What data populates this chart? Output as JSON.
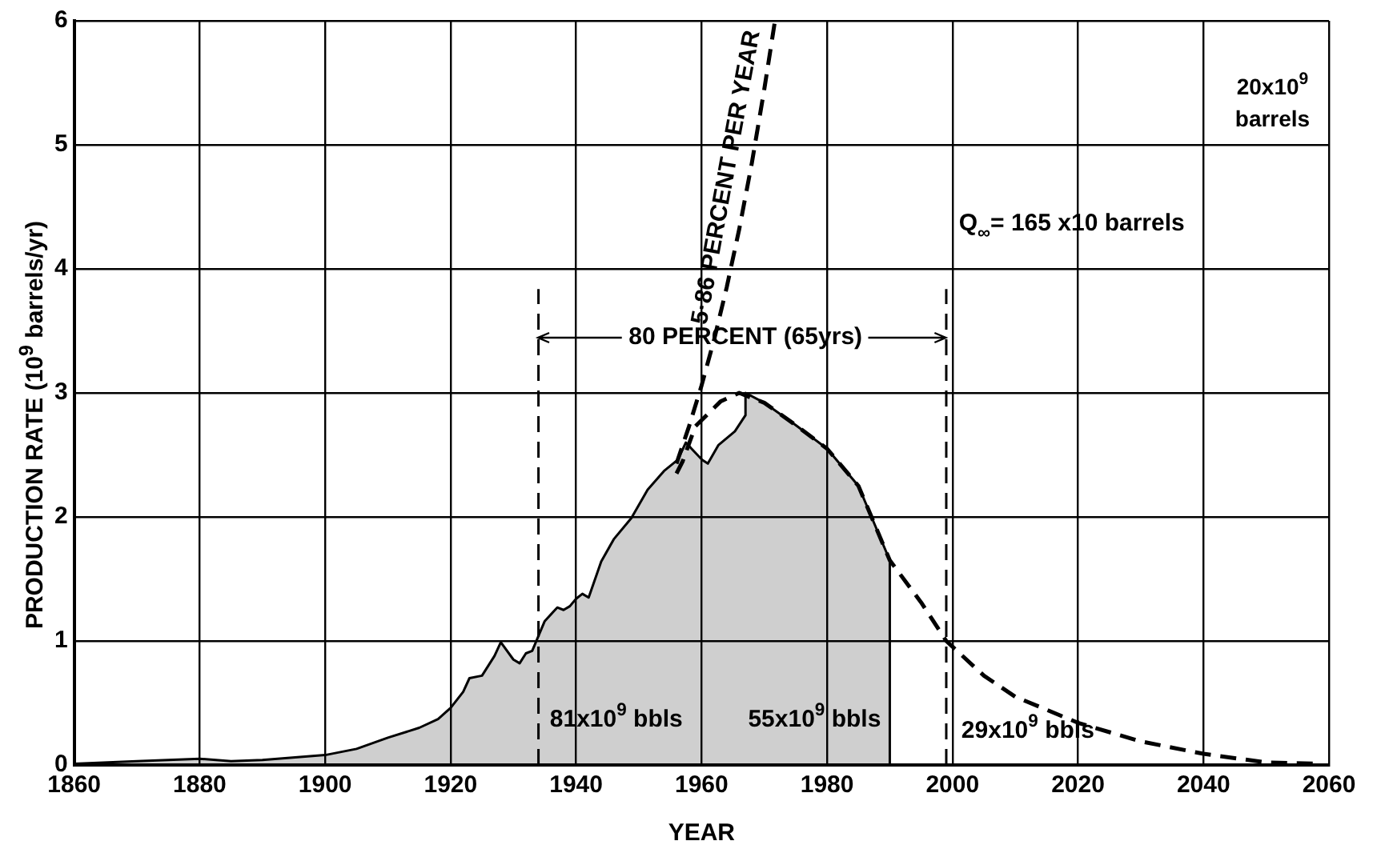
{
  "chart_data": {
    "type": "line",
    "xlabel": "YEAR",
    "ylabel": "PRODUCTION RATE (10$^{9}$ barrels/yr)",
    "xlim": [
      1860,
      2060
    ],
    "xticks": [
      1860,
      1880,
      1900,
      1920,
      1940,
      1960,
      1980,
      2000,
      2020,
      2040,
      2060
    ],
    "ylim": [
      0,
      6
    ],
    "yticks": [
      0,
      1,
      2,
      3,
      4,
      5,
      6
    ],
    "grid": true,
    "legend": false,
    "marker": "none",
    "series": [
      {
        "type": "area",
        "color": "#000000",
        "x": [
          1860,
          1870,
          1880,
          1885,
          1890,
          1900,
          1905,
          1910,
          1915,
          1918,
          1920,
          1922,
          1923,
          1925,
          1927,
          1928,
          1930,
          1931,
          1932,
          1933,
          1935,
          1937,
          1938,
          1939,
          1940,
          1941,
          1942,
          1944,
          1946,
          1948.8,
          1951.4,
          1954,
          1956.2,
          1957.5,
          1958.4,
          1960.1,
          1961,
          1962.7,
          1965.3,
          1967,
          1967,
          1970,
          1975,
          1980,
          1985,
          1990,
          1990
        ],
        "values": [
          0.01,
          0.03,
          0.05,
          0.03,
          0.04,
          0.08,
          0.13,
          0.22,
          0.3,
          0.37,
          0.46,
          0.59,
          0.7,
          0.72,
          0.88,
          0.99,
          0.85,
          0.82,
          0.9,
          0.92,
          1.16,
          1.27,
          1.25,
          1.28,
          1.34,
          1.38,
          1.35,
          1.64,
          1.82,
          1.99,
          2.22,
          2.37,
          2.46,
          2.6,
          2.55,
          2.46,
          2.43,
          2.58,
          2.69,
          2.82,
          3.0,
          2.92,
          2.74,
          2.55,
          2.25,
          1.65,
          0
        ]
      },
      {
        "color": "#000000",
        "line_style": "dashed",
        "x": [
          1956,
          1957,
          1959,
          1963,
          1966,
          1970,
          1975,
          1980,
          1985,
          1990,
          1995,
          1999,
          2005,
          2010,
          2020,
          2030,
          2040,
          2050,
          2058
        ],
        "values": [
          2.35,
          2.45,
          2.73,
          2.93,
          3.0,
          2.92,
          2.74,
          2.55,
          2.25,
          1.65,
          1.31,
          1.0,
          0.72,
          0.55,
          0.34,
          0.19,
          0.09,
          0.02,
          0.01
        ]
      },
      {
        "color": "#000000",
        "line_style": "dashed",
        "x": [
          1956,
          1958,
          1960,
          1962,
          1964,
          1966,
          1968,
          1970,
          1971.7
        ],
        "values": [
          2.43,
          2.73,
          3.06,
          3.43,
          3.85,
          4.32,
          4.85,
          5.45,
          6
        ]
      }
    ],
    "ref_lines": [
      {
        "axis": "x",
        "value": 1934,
        "line_style": "dashed"
      },
      {
        "axis": "x",
        "value": 1999,
        "line_style": "dashed"
      }
    ],
    "annotations": [
      "80 PERCENT (65yrs)",
      "5·86 PERCENT PER YEAR",
      "81x10$^{9}$ bbls",
      "55x10$^{9}$ bbls",
      "29x10$^{9}$ bbls",
      "Q$_{∞}$= 165 x10 barrels",
      "20x10$^{9}$ barrels"
    ]
  }
}
